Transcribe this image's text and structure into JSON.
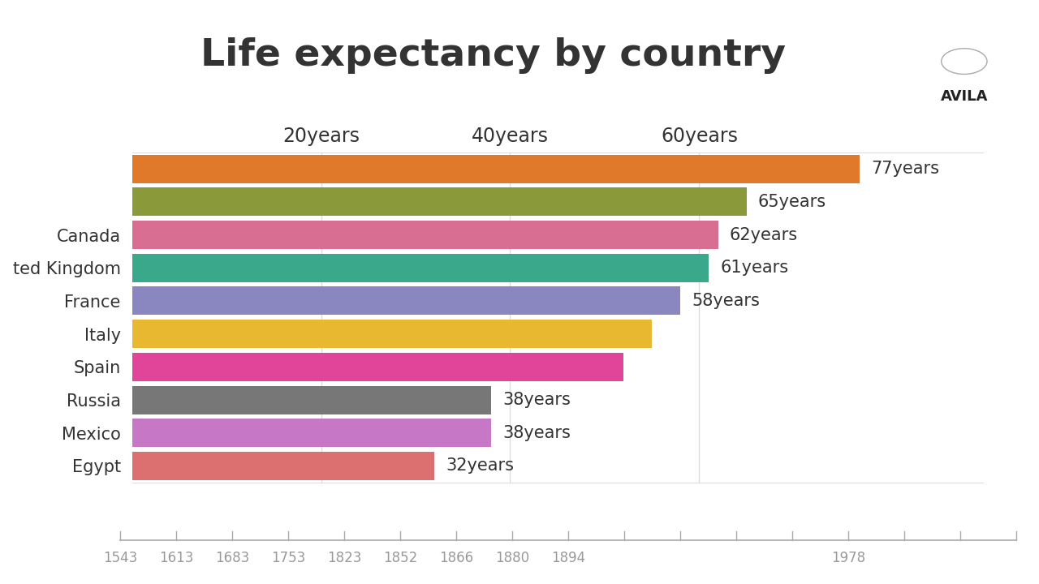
{
  "chart_data": {
    "type": "bar",
    "orientation": "horizontal",
    "title": "Life expectancy by country",
    "categories": [
      null,
      null,
      "Canada",
      "ted Kingdom",
      "France",
      "Italy",
      "Spain",
      "Russia",
      "Mexico",
      "Egypt"
    ],
    "values": [
      77,
      65,
      62,
      61,
      58,
      55,
      52,
      38,
      38,
      32
    ],
    "value_labels": [
      "77years",
      "65years",
      "62years",
      "61years",
      "58years",
      null,
      null,
      "38years",
      "38years",
      "32years"
    ],
    "data_labels": true,
    "colors": [
      "#e07a2a",
      "#8a9a3a",
      "#d86f93",
      "#3aa88a",
      "#8a86c0",
      "#e8b830",
      "#e0459a",
      "#777777",
      "#c678c6",
      "#dc6f6f"
    ],
    "xlim": [
      0,
      90
    ],
    "xticks": [
      {
        "value": 20,
        "label": "20years"
      },
      {
        "value": 40,
        "label": "40years"
      },
      {
        "value": 60,
        "label": "60years"
      }
    ],
    "grid": true,
    "timeline": [
      "1543",
      "1613",
      "1683",
      "1753",
      "1823",
      "1852",
      "1866",
      "1880",
      "1894",
      null,
      null,
      null,
      null,
      "1978",
      null,
      null,
      null
    ],
    "brand": "AVILA"
  }
}
